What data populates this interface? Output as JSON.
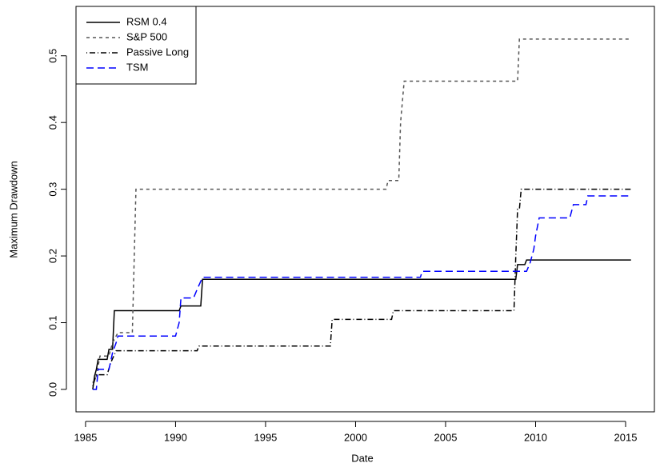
{
  "chart_data": {
    "type": "line",
    "xlabel": "Date",
    "ylabel": "Maximum Drawdown",
    "xlim": [
      1984.47,
      2016.6
    ],
    "ylim": [
      -0.0336,
      0.574
    ],
    "xticks": [
      1985,
      1990,
      1995,
      2000,
      2005,
      2010,
      2015
    ],
    "yticks": [
      {
        "value": 0,
        "label": "0.0"
      },
      0.1,
      0.2,
      0.3,
      0.4,
      0.5
    ],
    "legend": "topleft",
    "series": [
      {
        "name": "RSM 0.4",
        "color": "#000000",
        "linestyle": "solid",
        "x": [
          1985.4,
          1985.5,
          1985.6,
          1985.7,
          1986.2,
          1986.3,
          1986.5,
          1986.6,
          1990.2,
          1990.3,
          1991.4,
          1991.5,
          2008.9,
          2009.0,
          2009.4,
          2009.5,
          2015.3
        ],
        "values": [
          0,
          0.02,
          0.03,
          0.045,
          0.045,
          0.06,
          0.06,
          0.118,
          0.118,
          0.125,
          0.125,
          0.165,
          0.165,
          0.187,
          0.187,
          0.194,
          0.194
        ]
      },
      {
        "name": "S&P 500",
        "color": "#555555",
        "linestyle": "dashed",
        "x": [
          1985.4,
          1985.6,
          1985.8,
          1986.3,
          1986.5,
          1986.8,
          1987.6,
          1987.8,
          2001.7,
          2001.8,
          2002.4,
          2002.5,
          2002.7,
          2009.0,
          2009.1,
          2015.3
        ],
        "values": [
          0.01,
          0.02,
          0.05,
          0.05,
          0.07,
          0.085,
          0.085,
          0.3,
          0.3,
          0.313,
          0.313,
          0.4,
          0.462,
          0.462,
          0.525,
          0.525
        ]
      },
      {
        "name": "Passive Long",
        "color": "#000000",
        "linestyle": "dotdash",
        "x": [
          1985.4,
          1985.6,
          1986.2,
          1986.4,
          1986.7,
          1991.2,
          1991.3,
          1998.6,
          1998.7,
          2002.0,
          2002.1,
          2008.8,
          2008.9,
          2009.0,
          2009.1,
          2009.2,
          2015.3
        ],
        "values": [
          0.005,
          0.022,
          0.022,
          0.04,
          0.058,
          0.058,
          0.065,
          0.065,
          0.105,
          0.105,
          0.118,
          0.118,
          0.2,
          0.27,
          0.27,
          0.3,
          0.3
        ]
      },
      {
        "name": "TSM",
        "color": "#0000ff",
        "linestyle": "longdash",
        "x": [
          1985.4,
          1985.6,
          1985.7,
          1986.3,
          1986.5,
          1986.7,
          1986.8,
          1990.0,
          1990.2,
          1990.3,
          1991.0,
          1991.2,
          1991.5,
          2003.6,
          2003.7,
          2009.5,
          2009.7,
          2009.9,
          2010.0,
          2010.2,
          2011.9,
          2012.1,
          2012.8,
          2012.9,
          2015.3
        ],
        "values": [
          0,
          0,
          0.03,
          0.03,
          0.055,
          0.07,
          0.08,
          0.08,
          0.1,
          0.137,
          0.137,
          0.15,
          0.168,
          0.168,
          0.177,
          0.177,
          0.19,
          0.21,
          0.23,
          0.257,
          0.257,
          0.277,
          0.277,
          0.29,
          0.29
        ]
      }
    ]
  }
}
